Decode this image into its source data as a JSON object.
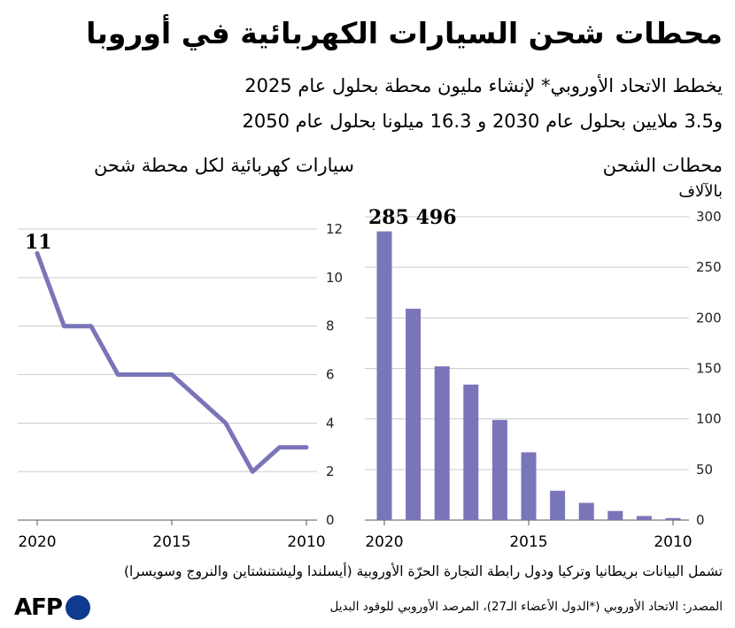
{
  "title": "محطات شحن السيارات الكهربائية في أوروبا",
  "subtitle_line1": "يخطط الاتحاد الأوروبي* لإنشاء مليون محطة بحلول عام 2025",
  "subtitle_line2": "و3.5 ملايين بحلول عام 2030 و 16.3 ميلونا بحلول عام 2050",
  "note": "تشمل البيانات بريطانيا وتركيا ودول رابطة التجارة الحرّة الأوروبية (أيسلندا وليشتنشتاين والنروج وسويسرا)",
  "source": "المصدر: الاتحاد الأوروبي (*الدول الأعضاء الـ27)، المرصد الأوروبي للوقود البديل",
  "logo_text": "AFP",
  "colors": {
    "series": "#7a75b8",
    "grid": "#cccccc",
    "logo_dot": "#0f3a8e"
  },
  "chart_data": [
    {
      "type": "line",
      "title": "سيارات كهربائية لكل محطة شحن",
      "x": [
        2010,
        2011,
        2012,
        2013,
        2014,
        2015,
        2016,
        2017,
        2018,
        2019,
        2020
      ],
      "values": [
        3,
        3,
        2,
        4,
        5,
        6,
        6,
        6,
        8,
        8,
        11
      ],
      "x_ticks": [
        "2010",
        "2015",
        "2020"
      ],
      "y_ticks": [
        "0",
        "2",
        "4",
        "6",
        "8",
        "10",
        "12"
      ],
      "ylim": [
        0,
        12
      ],
      "x_reversed": true,
      "annotation": "11",
      "grid": true
    },
    {
      "type": "bar",
      "title": "محطات الشحن",
      "unit": "بالآلاف",
      "categories": [
        2010,
        2011,
        2012,
        2013,
        2014,
        2015,
        2016,
        2017,
        2018,
        2019,
        2020
      ],
      "values": [
        2,
        4,
        9,
        17,
        29,
        67,
        99,
        134,
        152,
        209,
        285.496
      ],
      "x_ticks": [
        "2010",
        "2015",
        "2020"
      ],
      "y_ticks": [
        "0",
        "50",
        "100",
        "150",
        "200",
        "250",
        "300"
      ],
      "ylim": [
        0,
        300
      ],
      "x_reversed": true,
      "annotation": "285 496",
      "grid": true
    }
  ]
}
